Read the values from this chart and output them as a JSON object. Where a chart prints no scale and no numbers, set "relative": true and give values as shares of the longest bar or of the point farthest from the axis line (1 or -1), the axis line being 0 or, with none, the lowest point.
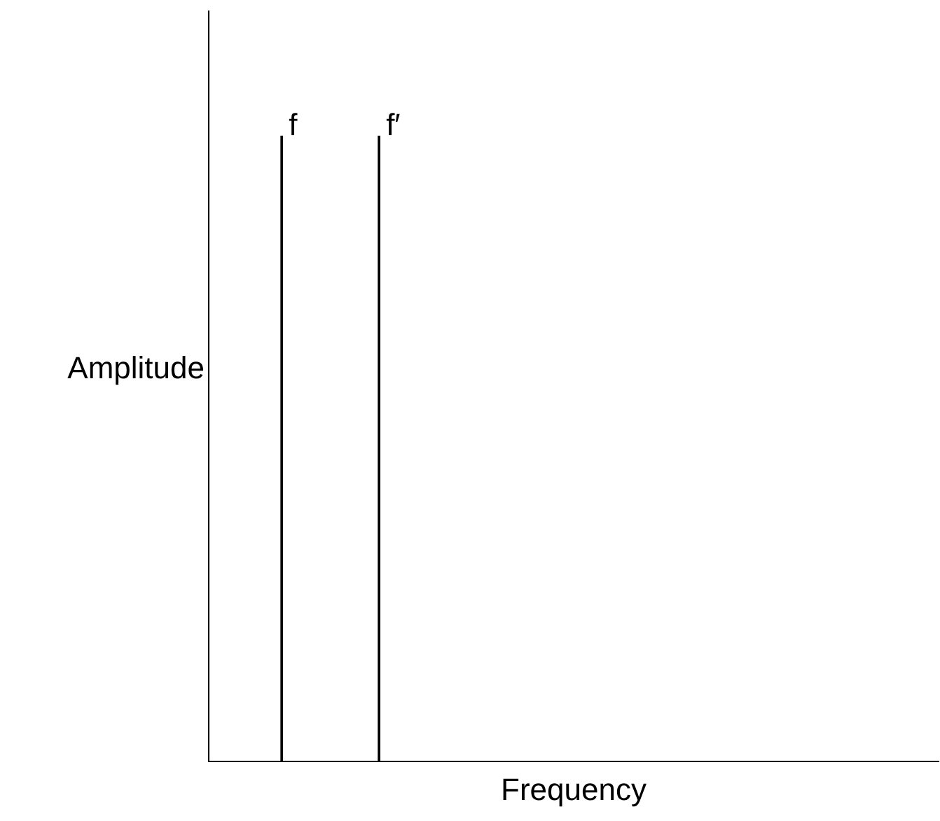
{
  "chart_data": {
    "type": "bar",
    "relative": true,
    "xlabel": "Frequency",
    "ylabel": "Amplitude",
    "categories": [
      null,
      "f",
      null,
      "f′",
      null,
      null,
      null,
      null,
      null,
      null,
      null,
      null,
      null,
      null,
      null
    ],
    "values": [
      null,
      1,
      null,
      1,
      null,
      null,
      null,
      null,
      null,
      null,
      null,
      null,
      null,
      null,
      null
    ],
    "color": "#000000",
    "grid": false,
    "legend": false,
    "tick_labels": false
  }
}
